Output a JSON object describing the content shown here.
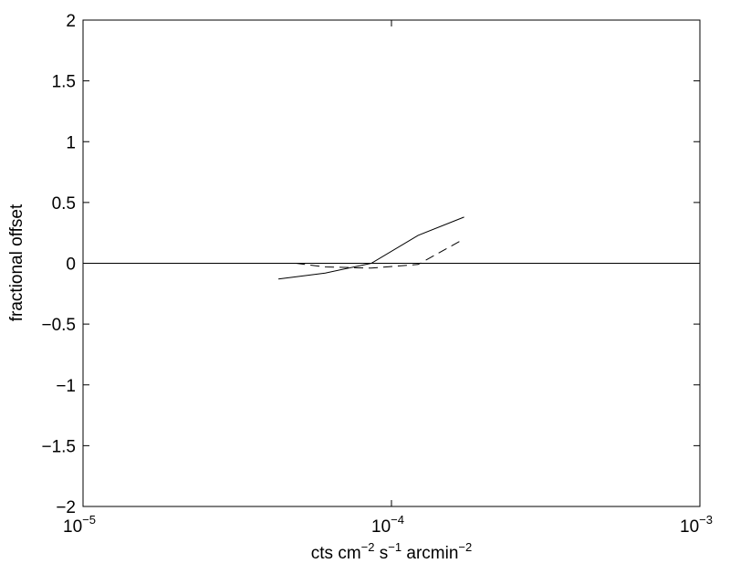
{
  "chart_data": {
    "type": "line",
    "xlabel": "cts cm^-2 s^-1 arcmin^-2",
    "xlabel_parts": [
      "cts cm",
      "−2",
      " s",
      "−1",
      " arcmin",
      "−2"
    ],
    "ylabel": "fractional offset",
    "xscale": "log",
    "xlim": [
      1e-05,
      0.001
    ],
    "ylim": [
      -2,
      2
    ],
    "xticks": [
      {
        "base": "10",
        "exp": "−5",
        "value": 1e-05
      },
      {
        "base": "10",
        "exp": "−4",
        "value": 0.0001
      },
      {
        "base": "10",
        "exp": "−3",
        "value": 0.001
      }
    ],
    "yticks": [
      {
        "label": "2",
        "value": 2
      },
      {
        "label": "1.5",
        "value": 1.5
      },
      {
        "label": "1",
        "value": 1
      },
      {
        "label": "0.5",
        "value": 0.5
      },
      {
        "label": "0",
        "value": 0
      },
      {
        "label": "−0.5",
        "value": -0.5
      },
      {
        "label": "−1",
        "value": -1
      },
      {
        "label": "−1.5",
        "value": -1.5
      },
      {
        "label": "−2",
        "value": -2
      }
    ],
    "grid": false,
    "reference_line": {
      "y": 0,
      "color": "#000000"
    },
    "series": [
      {
        "style": "solid",
        "color": "#000000",
        "x": [
          4.3e-05,
          6.1e-05,
          8.6e-05,
          0.000122,
          0.000172
        ],
        "y": [
          -0.13,
          -0.08,
          0.0,
          0.23,
          0.38
        ]
      },
      {
        "style": "dashed",
        "color": "#000000",
        "x": [
          4.9e-05,
          6.1e-05,
          8.6e-05,
          0.000122,
          0.000172
        ],
        "y": [
          0.0,
          -0.03,
          -0.04,
          -0.01,
          0.2
        ]
      }
    ]
  }
}
